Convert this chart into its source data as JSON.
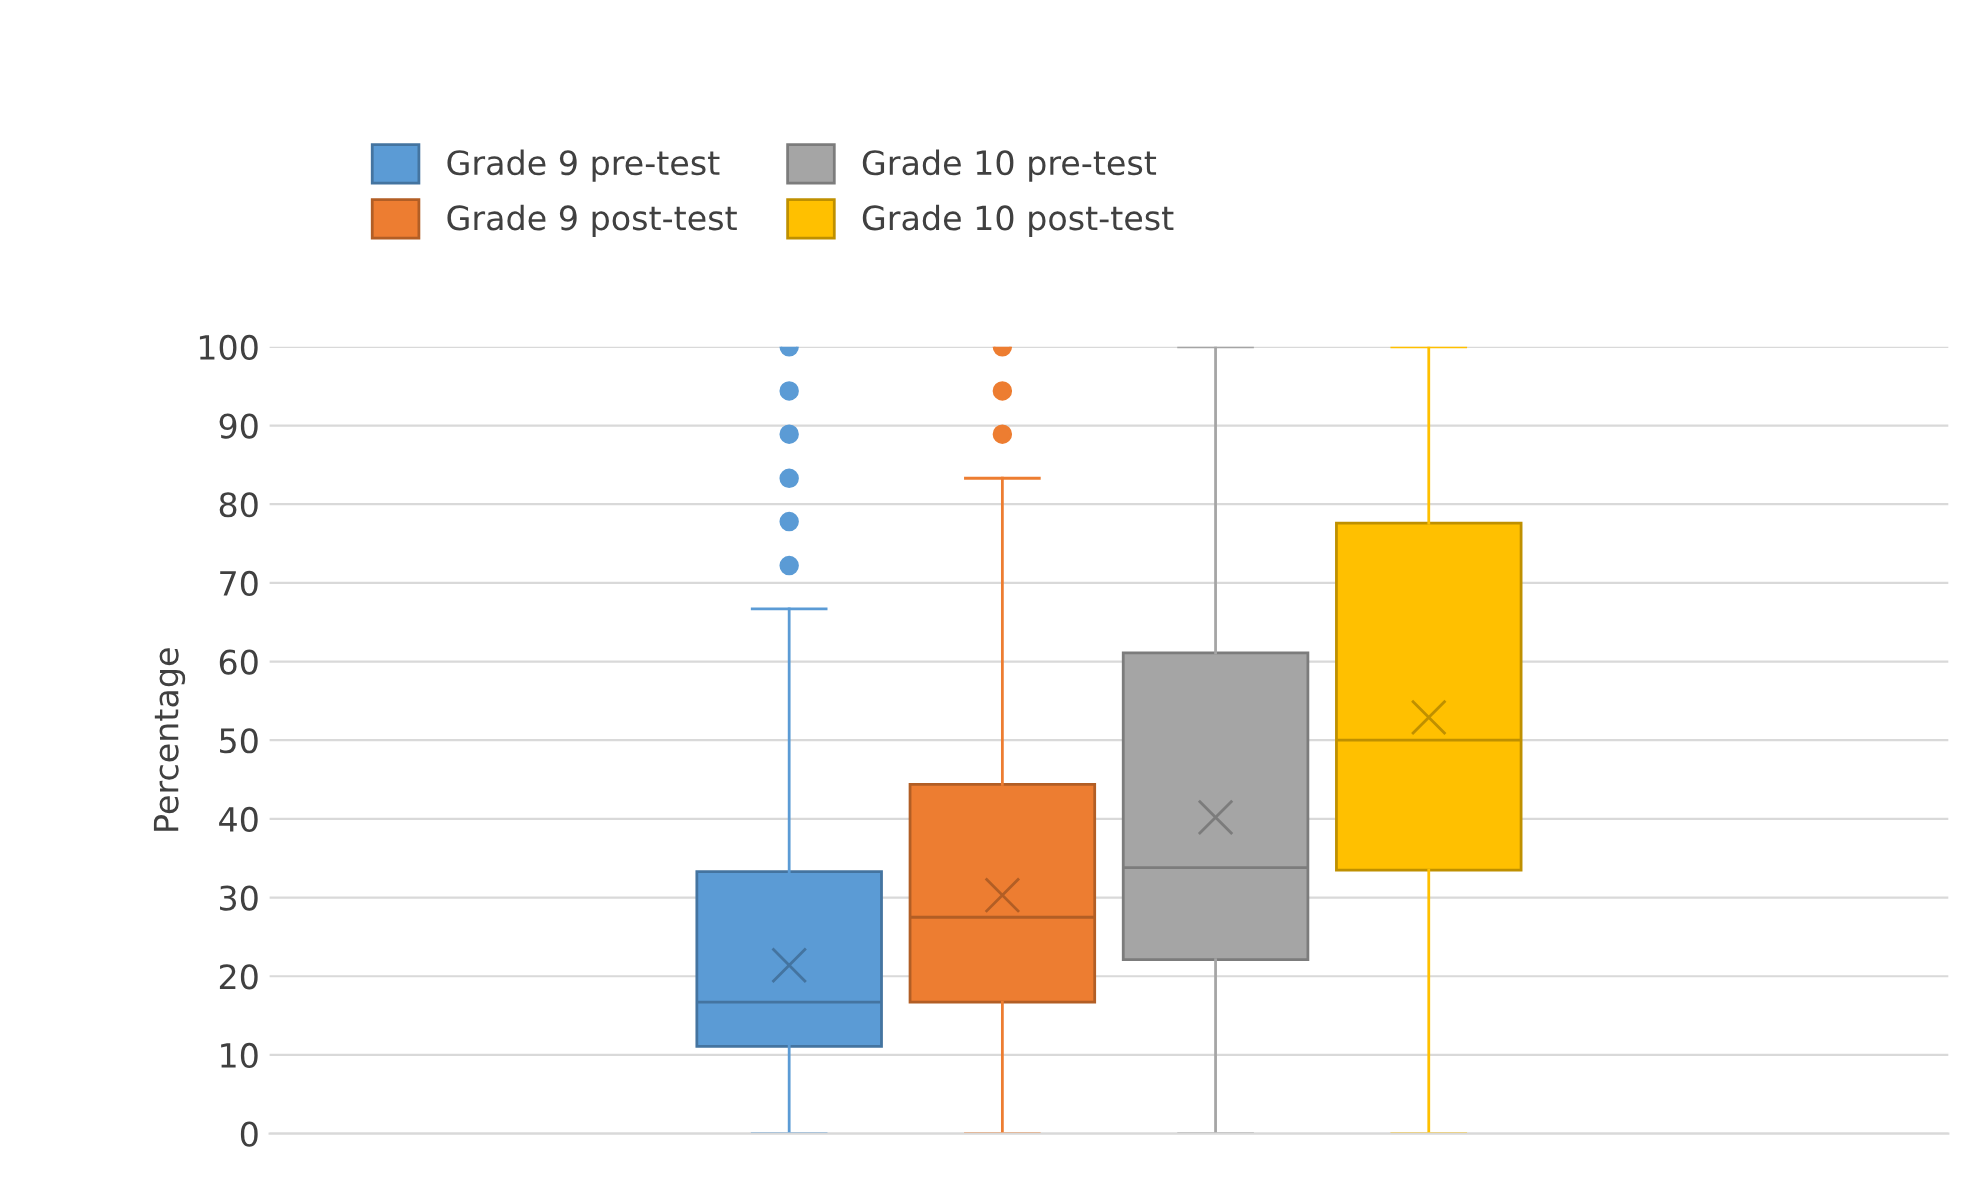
{
  "chart_data": {
    "type": "box",
    "ylabel": "Percentage",
    "categories": [
      null
    ],
    "ylim": [
      0,
      100
    ],
    "yticks": [
      0,
      10,
      20,
      30,
      40,
      50,
      60,
      70,
      80,
      90,
      100
    ],
    "grid": "y",
    "legend": "top",
    "tick_labels": "y",
    "series": [
      {
        "name": "Grade 9 pre-test",
        "color": "#5b9bd5",
        "boxes": [
          {
            "low": 0,
            "q1": 11.1,
            "median": 16.7,
            "q3": 33.3,
            "high": 66.7,
            "mean": 21.4,
            "outliers": [
              72.2,
              77.8,
              83.3,
              88.9,
              94.4,
              100
            ]
          }
        ]
      },
      {
        "name": "Grade 9 post-test",
        "color": "#ed7d31",
        "boxes": [
          {
            "low": 0,
            "q1": 16.7,
            "median": 27.5,
            "q3": 44.4,
            "high": 83.3,
            "mean": 30.3,
            "outliers": [
              88.9,
              94.4,
              100
            ]
          }
        ]
      },
      {
        "name": "Grade 10 pre-test",
        "color": "#a5a5a5",
        "boxes": [
          {
            "low": 0,
            "q1": 22.1,
            "median": 33.8,
            "q3": 61.1,
            "high": 100,
            "mean": 40.2
          }
        ]
      },
      {
        "name": "Grade 10 post-test",
        "color": "#ffc000",
        "boxes": [
          {
            "low": 0,
            "q1": 33.5,
            "median": 50,
            "q3": 77.6,
            "high": 100,
            "mean": 52.9
          }
        ]
      }
    ]
  }
}
